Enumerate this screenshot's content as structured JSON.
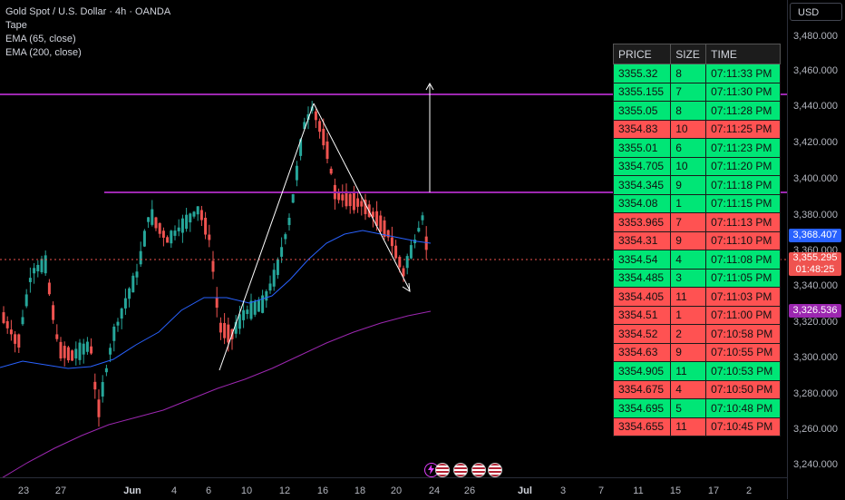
{
  "legend": {
    "symbol": "Gold Spot / U.S. Dollar · 4h · OANDA",
    "ind1": "Tape",
    "ind2": "EMA (65, close)",
    "ind3": "EMA (200, close)"
  },
  "axis": {
    "currency": "USD",
    "ticks": [
      "3,480.000",
      "3,460.000",
      "3,440.000",
      "3,420.000",
      "3,400.000",
      "3,380.000",
      "3,360.000",
      "3,340.000",
      "3,320.000",
      "3,300.000",
      "3,280.000",
      "3,260.000",
      "3,240.000"
    ],
    "ema65_label": "3,368.407",
    "price_label": "3,355.295",
    "countdown": "01:48:25",
    "ema200_label": "3,326.536"
  },
  "time_axis": [
    "23",
    "27",
    "Jun",
    "4",
    "6",
    "10",
    "12",
    "16",
    "18",
    "20",
    "24",
    "26",
    "Jul",
    "3",
    "7",
    "11",
    "15",
    "17",
    "2"
  ],
  "tape": {
    "headers": [
      "PRICE",
      "SIZE",
      "TIME"
    ],
    "rows": [
      {
        "price": "3355.32",
        "size": "8",
        "time": "07:11:33 PM",
        "dir": "up"
      },
      {
        "price": "3355.155",
        "size": "7",
        "time": "07:11:30 PM",
        "dir": "up"
      },
      {
        "price": "3355.05",
        "size": "8",
        "time": "07:11:28 PM",
        "dir": "up"
      },
      {
        "price": "3354.83",
        "size": "10",
        "time": "07:11:25 PM",
        "dir": "dn"
      },
      {
        "price": "3355.01",
        "size": "6",
        "time": "07:11:23 PM",
        "dir": "up"
      },
      {
        "price": "3354.705",
        "size": "10",
        "time": "07:11:20 PM",
        "dir": "up"
      },
      {
        "price": "3354.345",
        "size": "9",
        "time": "07:11:18 PM",
        "dir": "up"
      },
      {
        "price": "3354.08",
        "size": "1",
        "time": "07:11:15 PM",
        "dir": "up"
      },
      {
        "price": "3353.965",
        "size": "7",
        "time": "07:11:13 PM",
        "dir": "dn"
      },
      {
        "price": "3354.31",
        "size": "9",
        "time": "07:11:10 PM",
        "dir": "dn"
      },
      {
        "price": "3354.54",
        "size": "4",
        "time": "07:11:08 PM",
        "dir": "up"
      },
      {
        "price": "3354.485",
        "size": "3",
        "time": "07:11:05 PM",
        "dir": "up"
      },
      {
        "price": "3354.405",
        "size": "11",
        "time": "07:11:03 PM",
        "dir": "dn"
      },
      {
        "price": "3354.51",
        "size": "1",
        "time": "07:11:00 PM",
        "dir": "dn"
      },
      {
        "price": "3354.52",
        "size": "2",
        "time": "07:10:58 PM",
        "dir": "dn"
      },
      {
        "price": "3354.63",
        "size": "9",
        "time": "07:10:55 PM",
        "dir": "dn"
      },
      {
        "price": "3354.905",
        "size": "11",
        "time": "07:10:53 PM",
        "dir": "up"
      },
      {
        "price": "3354.675",
        "size": "4",
        "time": "07:10:50 PM",
        "dir": "dn"
      },
      {
        "price": "3354.695",
        "size": "5",
        "time": "07:10:48 PM",
        "dir": "up"
      },
      {
        "price": "3354.655",
        "size": "11",
        "time": "07:10:45 PM",
        "dir": "dn"
      }
    ]
  },
  "colors": {
    "up": "#26a69a",
    "down": "#ef5350",
    "ema65": "#2962ff",
    "ema200": "#9c27b0",
    "level_line": "#9c27b0",
    "tape_up": "#00e676",
    "tape_down": "#ff5252"
  },
  "events": [
    "lightning-icon",
    "us-flag-icon",
    "us-flag-icon",
    "us-flag-icon",
    "us-flag-icon"
  ]
}
